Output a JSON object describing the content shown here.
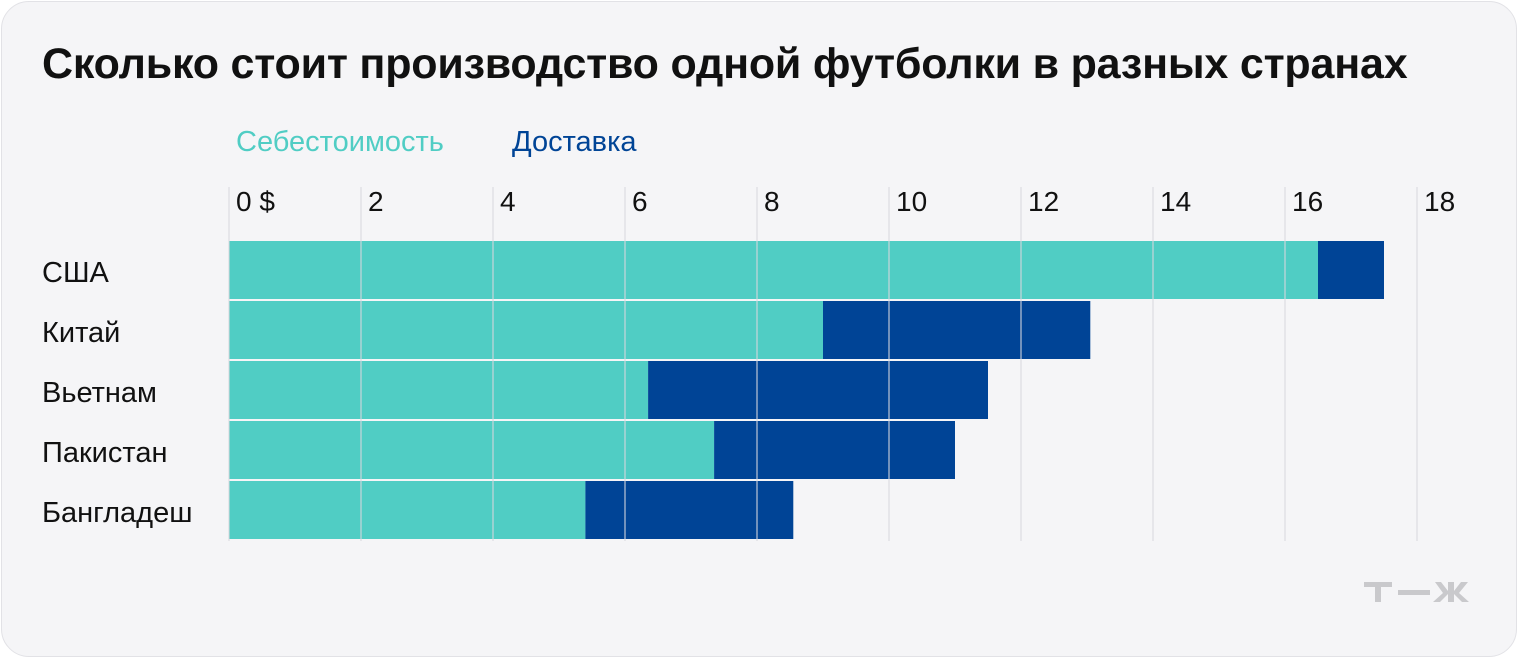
{
  "chart_data": {
    "type": "bar",
    "orientation": "horizontal",
    "stacked": true,
    "title": "Сколько стоит производство одной футболки в разных странах",
    "categories": [
      "США",
      "Китай",
      "Вьетнам",
      "Пакистан",
      "Бангладеш"
    ],
    "series": [
      {
        "name": "Себестоимость",
        "color": "#50cdc4",
        "values": [
          16.5,
          9.0,
          6.35,
          7.35,
          5.4
        ]
      },
      {
        "name": "Доставка",
        "color": "#004496",
        "values": [
          1.0,
          4.05,
          5.15,
          3.65,
          3.15
        ]
      }
    ],
    "xticks": [
      "0 $",
      "2",
      "4",
      "6",
      "8",
      "10",
      "12",
      "14",
      "16",
      "18"
    ],
    "xlim": [
      0,
      18
    ],
    "grid": true,
    "legend_position": "top-left"
  },
  "colors": {
    "gridline": "#d9d9dd",
    "logo": "#c9c9cc",
    "title": "#111111"
  }
}
